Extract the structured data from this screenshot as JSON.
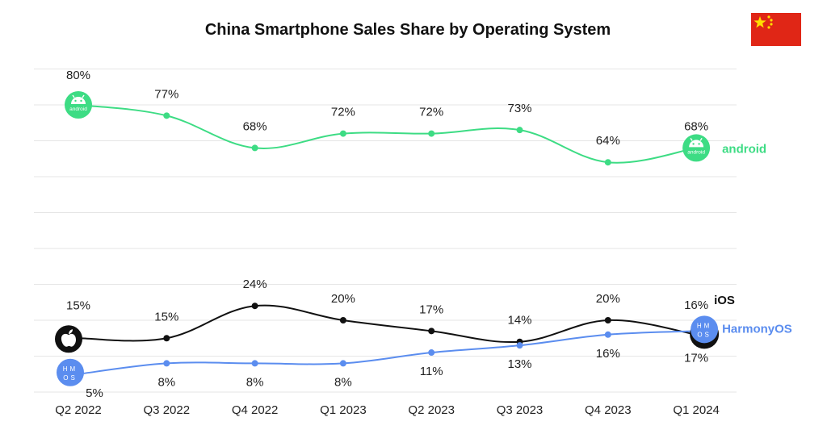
{
  "title": "China Smartphone Sales Share by Operating System",
  "flag_icon": "china-flag-icon",
  "colors": {
    "android": "#3ddc84",
    "ios": "#111111",
    "harmonyos": "#5b8def",
    "grid": "#e6e6e6"
  },
  "chart_data": {
    "type": "line",
    "title": "China Smartphone Sales Share by Operating System",
    "xlabel": "",
    "ylabel": "",
    "ylim": [
      0,
      90
    ],
    "grid": true,
    "categories": [
      "Q2 2022",
      "Q3 2022",
      "Q4 2022",
      "Q1 2023",
      "Q2 2023",
      "Q3 2023",
      "Q4 2023",
      "Q1 2024"
    ],
    "series": [
      {
        "name": "android",
        "icon": "android-icon",
        "labels": [
          "80%",
          "77%",
          "68%",
          "72%",
          "72%",
          "73%",
          "64%",
          "68%"
        ],
        "values": [
          80,
          77,
          68,
          72,
          72,
          73,
          64,
          68
        ]
      },
      {
        "name": "iOS",
        "icon": "apple-icon",
        "labels": [
          "15%",
          "15%",
          "24%",
          "20%",
          "17%",
          "14%",
          "20%",
          "16%"
        ],
        "values": [
          15,
          15,
          24,
          20,
          17,
          14,
          20,
          16
        ]
      },
      {
        "name": "HarmonyOS",
        "icon": "harmonyos-icon",
        "labels": [
          "5%",
          "8%",
          "8%",
          "8%",
          "11%",
          "13%",
          "16%",
          "17%"
        ],
        "values": [
          5,
          8,
          8,
          8,
          11,
          13,
          16,
          17
        ]
      }
    ]
  }
}
